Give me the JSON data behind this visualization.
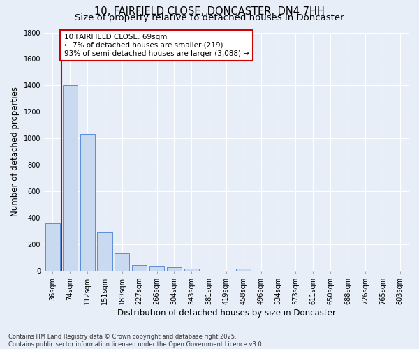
{
  "title": "10, FAIRFIELD CLOSE, DONCASTER, DN4 7HH",
  "subtitle": "Size of property relative to detached houses in Doncaster",
  "xlabel": "Distribution of detached houses by size in Doncaster",
  "ylabel": "Number of detached properties",
  "footer": "Contains HM Land Registry data © Crown copyright and database right 2025.\nContains public sector information licensed under the Open Government Licence v3.0.",
  "categories": [
    "36sqm",
    "74sqm",
    "112sqm",
    "151sqm",
    "189sqm",
    "227sqm",
    "266sqm",
    "304sqm",
    "343sqm",
    "381sqm",
    "419sqm",
    "458sqm",
    "496sqm",
    "534sqm",
    "573sqm",
    "611sqm",
    "650sqm",
    "688sqm",
    "726sqm",
    "765sqm",
    "803sqm"
  ],
  "values": [
    360,
    1400,
    1035,
    290,
    130,
    43,
    37,
    25,
    18,
    0,
    0,
    18,
    0,
    0,
    0,
    0,
    0,
    0,
    0,
    0,
    0
  ],
  "bar_color": "#c8d9f0",
  "bar_edge_color": "#5b8dd9",
  "vline_color": "#cc0000",
  "annotation_text": "10 FAIRFIELD CLOSE: 69sqm\n← 7% of detached houses are smaller (219)\n93% of semi-detached houses are larger (3,088) →",
  "annotation_box_color": "#cc0000",
  "ylim": [
    0,
    1800
  ],
  "yticks": [
    0,
    200,
    400,
    600,
    800,
    1000,
    1200,
    1400,
    1600,
    1800
  ],
  "bg_color": "#e8eef8",
  "plot_bg_color": "#e8eef8",
  "grid_color": "#ffffff",
  "title_fontsize": 10.5,
  "subtitle_fontsize": 9.5,
  "tick_fontsize": 7,
  "ylabel_fontsize": 8.5,
  "xlabel_fontsize": 8.5,
  "footer_fontsize": 6,
  "annotation_fontsize": 7.5
}
